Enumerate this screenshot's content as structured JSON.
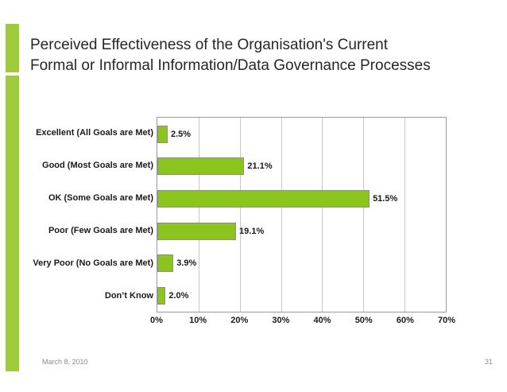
{
  "slide": {
    "title_line1": "Perceived Effectiveness of the Organisation's Current",
    "title_line2": "Formal or Informal Information/Data Governance Processes",
    "footer_date": "March 8, 2010",
    "footer_page": "31"
  },
  "colors": {
    "accent_green": "#A0CB3C",
    "bar_fill": "#8CC41E",
    "bar_border": "#8E8E8E",
    "gridline": "#C6C6C6",
    "plot_border": "#9A9A9A",
    "title_text": "#262626",
    "label_text": "#1A1A1A",
    "footer_text": "#8B8B8B"
  },
  "chart_data": {
    "type": "bar",
    "orientation": "horizontal",
    "title": "",
    "categories": [
      "Excellent (All Goals are Met)",
      "Good (Most Goals are Met)",
      "OK (Some Goals are Met)",
      "Poor (Few Goals are Met)",
      "Very Poor (No Goals are Met)",
      "Don’t Know"
    ],
    "values": [
      2.5,
      21.1,
      51.5,
      19.1,
      3.9,
      2.0
    ],
    "data_labels": [
      "2.5%",
      "21.1%",
      "51.5%",
      "19.1%",
      "3.9%",
      "2.0%"
    ],
    "x_ticks": [
      "0%",
      "10%",
      "20%",
      "30%",
      "40%",
      "50%",
      "60%",
      "70%"
    ],
    "x_tick_values": [
      0,
      10,
      20,
      30,
      40,
      50,
      60,
      70
    ],
    "xlim": [
      0,
      70
    ],
    "grid": true,
    "legend": "none",
    "xlabel": "",
    "ylabel": ""
  }
}
